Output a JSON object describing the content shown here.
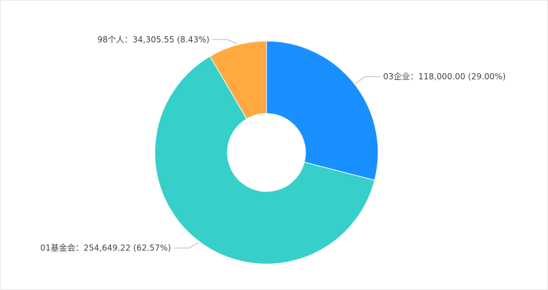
{
  "chart_data": {
    "type": "pie",
    "title": "",
    "slices": [
      {
        "label": "03企业",
        "value": 118000.0,
        "value_text": "118,000.00",
        "percent": 29.0,
        "percent_text": "(29.00%)",
        "color": "#1890ff"
      },
      {
        "label": "01基金会",
        "value": 254649.22,
        "value_text": "254,649.22",
        "percent": 62.57,
        "percent_text": "(62.57%)",
        "color": "#36cfc9"
      },
      {
        "label": "98个人",
        "value": 34305.55,
        "value_text": "34,305.55",
        "percent": 8.43,
        "percent_text": "(8.43%)",
        "color": "#ffa940"
      }
    ],
    "separator": "：",
    "start_angle_deg": 0,
    "direction": "clockwise",
    "donut": true
  }
}
